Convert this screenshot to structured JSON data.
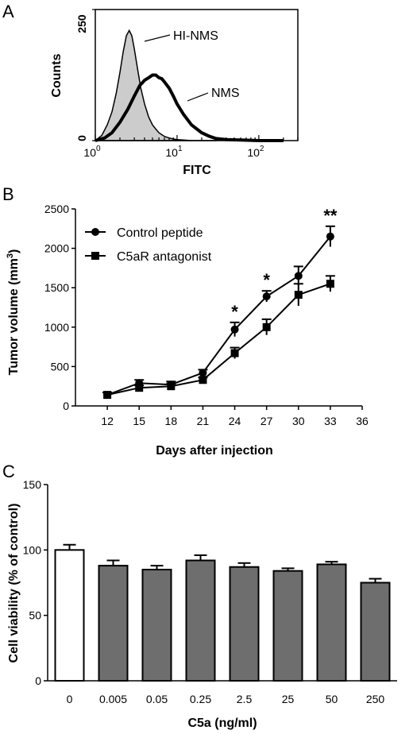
{
  "chart_data": [
    {
      "panel": "A",
      "type": "area",
      "xlabel": "FITC",
      "ylabel": "Counts",
      "x_scale": "log",
      "xlim": [
        1,
        300
      ],
      "ylim": [
        0,
        250
      ],
      "x_ticks": [
        {
          "value": 1,
          "base": "10",
          "exp": "0"
        },
        {
          "value": 10,
          "base": "10",
          "exp": "1"
        },
        {
          "value": 100,
          "base": "10",
          "exp": "2"
        }
      ],
      "y_ticks": [
        "0",
        "250"
      ],
      "series": [
        {
          "name": "HI-NMS",
          "fill": "#cccccc",
          "x": [
            1.0,
            1.2,
            1.4,
            1.6,
            1.8,
            2.0,
            2.2,
            2.4,
            2.6,
            2.8,
            3.0,
            3.3,
            3.6,
            4.0,
            4.5,
            5.0,
            5.5,
            6.0,
            7.0,
            8.0,
            9.0,
            10,
            12,
            15,
            20,
            30
          ],
          "y": [
            0,
            10,
            30,
            55,
            90,
            130,
            170,
            200,
            210,
            200,
            175,
            135,
            100,
            70,
            45,
            30,
            22,
            15,
            8,
            5,
            3,
            2,
            1,
            0,
            0,
            0
          ]
        },
        {
          "name": "NMS",
          "fill": "none",
          "x": [
            1.0,
            1.3,
            1.6,
            2.0,
            2.5,
            3.0,
            3.5,
            4.0,
            4.5,
            5.0,
            5.5,
            6.0,
            6.5,
            7.0,
            8.0,
            9.0,
            10,
            12,
            15,
            20,
            25,
            30,
            40,
            60,
            100,
            200
          ],
          "y": [
            0,
            5,
            15,
            35,
            60,
            85,
            105,
            115,
            120,
            125,
            125,
            120,
            118,
            112,
            100,
            85,
            70,
            50,
            30,
            15,
            8,
            4,
            2,
            1,
            0,
            0
          ]
        }
      ],
      "annotations": [
        "HI-NMS",
        "NMS"
      ]
    },
    {
      "panel": "B",
      "type": "line",
      "xlabel": "Days after injection",
      "ylabel": "Tumor volume (mm",
      "ylabel_sup": "3",
      "ylabel_tail": ")",
      "xlim": [
        12,
        36
      ],
      "ylim": [
        0,
        2500
      ],
      "x_ticks": [
        "12",
        "15",
        "18",
        "21",
        "24",
        "27",
        "30",
        "33",
        "36"
      ],
      "y_ticks": [
        "0",
        "500",
        "1000",
        "1500",
        "2000",
        "2500"
      ],
      "x": [
        12,
        15,
        18,
        21,
        24,
        27,
        30,
        33
      ],
      "series": [
        {
          "name": "Control peptide",
          "marker": "circle",
          "values": [
            140,
            290,
            270,
            420,
            970,
            1390,
            1650,
            2150
          ],
          "err": [
            30,
            40,
            40,
            40,
            90,
            70,
            120,
            130
          ]
        },
        {
          "name": "C5aR antagonist",
          "marker": "square",
          "values": [
            140,
            230,
            250,
            330,
            670,
            1000,
            1410,
            1550
          ],
          "err": [
            30,
            30,
            30,
            30,
            70,
            100,
            140,
            100
          ]
        }
      ],
      "significance": [
        {
          "x": 24,
          "label": "*"
        },
        {
          "x": 27,
          "label": "*"
        },
        {
          "x": 33,
          "label": "**"
        }
      ]
    },
    {
      "panel": "C",
      "type": "bar",
      "xlabel": "C5a (ng/ml)",
      "ylabel": "Cell viability (% of control)",
      "ylim": [
        0,
        150
      ],
      "y_ticks": [
        "0",
        "50",
        "100",
        "150"
      ],
      "categories": [
        "0",
        "0.005",
        "0.05",
        "0.25",
        "2.5",
        "25",
        "50",
        "250"
      ],
      "values": [
        100,
        88,
        85,
        92,
        87,
        84,
        89,
        75
      ],
      "err": [
        4,
        4,
        3,
        4,
        3,
        2,
        2,
        3
      ],
      "colors": [
        "#ffffff",
        "#6e6e6e",
        "#6e6e6e",
        "#6e6e6e",
        "#6e6e6e",
        "#6e6e6e",
        "#6e6e6e",
        "#6e6e6e"
      ]
    }
  ]
}
